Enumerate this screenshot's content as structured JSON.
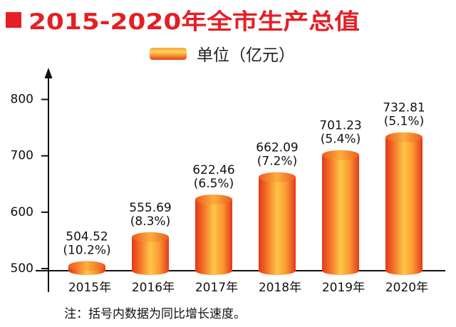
{
  "chart_data": {
    "type": "bar",
    "title": "2015-2020年全市生产总值",
    "legend_label": "单位（亿元）",
    "legend_placement": "top-center",
    "categories": [
      "2015年",
      "2016年",
      "2017年",
      "2018年",
      "2019年",
      "2020年"
    ],
    "values": [
      504.52,
      555.69,
      622.46,
      662.09,
      701.23,
      732.81
    ],
    "growth_labels": [
      "(10.2%)",
      "(8.3%)",
      "(6.5%)",
      "(7.2%)",
      "(5.4%)",
      "(5.1%)"
    ],
    "yticks": [
      500,
      600,
      700,
      800
    ],
    "ylim": [
      500,
      850
    ],
    "xlabel": "",
    "ylabel": "",
    "grid": false,
    "note": "注：括号内数据为同比增长速度。",
    "colors": {
      "title": "#e41f25",
      "bar_edge": "#e3381c",
      "bar_center": "#ffc649",
      "bar_top": "#fcae3e",
      "text": "#111111"
    }
  }
}
